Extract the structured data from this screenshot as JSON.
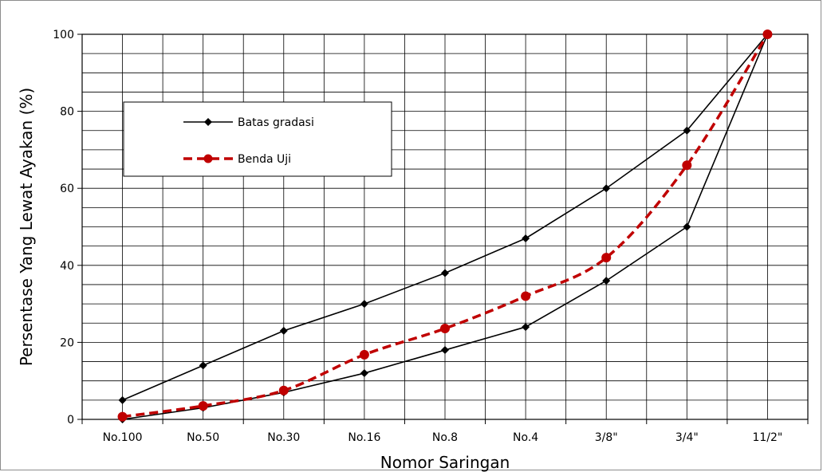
{
  "chart_data": {
    "type": "line",
    "categories": [
      "No.100",
      "No.50",
      "No.30",
      "No.16",
      "No.8",
      "No.4",
      "3/8\"",
      "3/4\"",
      "11/2\""
    ],
    "series": [
      {
        "name": "Batas gradasi",
        "role": "upper",
        "values": [
          5,
          14,
          23,
          30,
          38,
          47,
          60,
          75,
          100
        ],
        "color": "#000000",
        "marker": "diamond"
      },
      {
        "name": "",
        "role": "lower",
        "values": [
          0,
          3,
          7,
          12,
          18,
          24,
          36,
          50,
          100
        ],
        "color": "#000000",
        "marker": "diamond"
      },
      {
        "name": "Benda Uji",
        "role": "sample",
        "values": [
          0.7,
          3.5,
          7.5,
          16.8,
          23.6,
          32,
          42,
          66,
          100
        ],
        "color": "#c00000",
        "marker": "circle",
        "dashed": true
      }
    ],
    "xlabel": "Nomor Saringan",
    "ylabel": "Persentase Yang Lewat Ayakan (%)",
    "ylim": [
      0,
      100
    ],
    "yticks": [
      0,
      20,
      40,
      60,
      80,
      100
    ],
    "grid": true,
    "legend_position": "upper-left"
  }
}
